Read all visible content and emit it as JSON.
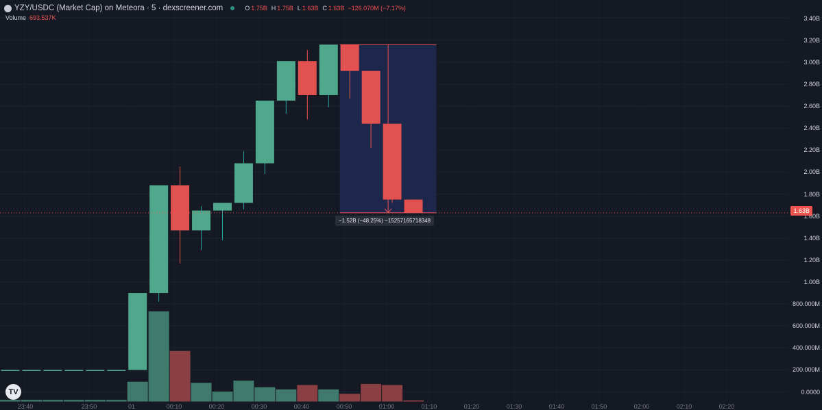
{
  "header": {
    "title": "YZY/USDC (Market Cap) on Meteora · 5 · dexscreener.com",
    "ohlc": [
      {
        "key": "O",
        "value": "1.75B"
      },
      {
        "key": "H",
        "value": "1.75B"
      },
      {
        "key": "L",
        "value": "1.63B"
      },
      {
        "key": "C",
        "value": "1.63B"
      },
      {
        "key": "",
        "value": "−126.070M (−7.17%)"
      }
    ],
    "volume_label": "Volume",
    "volume_value": "693.537K"
  },
  "current_price_label": "1.63B",
  "measure_label": "−1.52B (−48.25%) −15257165718348",
  "colors": {
    "up": "#26a69a",
    "down": "#ef5350",
    "background": "#151924",
    "measure_fill": "#1f2a52"
  },
  "chart_data": {
    "type": "candlestick",
    "y_unit": "market cap (B)",
    "price_ticks": [
      "3.40B",
      "3.20B",
      "3.00B",
      "2.80B",
      "2.60B",
      "2.40B",
      "2.20B",
      "2.00B",
      "1.80B",
      "1.60B",
      "1.40B",
      "1.20B",
      "1.00B",
      "800.000M",
      "600.000M",
      "400.000M",
      "200.000M",
      "0.0000"
    ],
    "price_tick_values": [
      3.4,
      3.2,
      3.0,
      2.8,
      2.6,
      2.4,
      2.2,
      2.0,
      1.8,
      1.6,
      1.4,
      1.2,
      1.0,
      0.8,
      0.6,
      0.4,
      0.2,
      0.0
    ],
    "x_ticks": [
      "23:40",
      "23:50",
      "01",
      "00:10",
      "00:20",
      "00:30",
      "00:40",
      "00:50",
      "01:00",
      "01:10",
      "01:20",
      "01:30",
      "01:40",
      "01:50",
      "02:00",
      "02:10",
      "02:20"
    ],
    "candles": [
      {
        "index": 0,
        "open": 0.2,
        "high": 0.2,
        "low": 0.2,
        "close": 0.2
      },
      {
        "index": 1,
        "open": 0.2,
        "high": 0.2,
        "low": 0.2,
        "close": 0.2
      },
      {
        "index": 2,
        "open": 0.2,
        "high": 0.2,
        "low": 0.2,
        "close": 0.2
      },
      {
        "index": 3,
        "open": 0.2,
        "high": 0.2,
        "low": 0.2,
        "close": 0.2
      },
      {
        "index": 4,
        "open": 0.2,
        "high": 0.2,
        "low": 0.2,
        "close": 0.2
      },
      {
        "index": 5,
        "open": 0.2,
        "high": 0.2,
        "low": 0.2,
        "close": 0.2
      },
      {
        "index": 6,
        "open": 0.2,
        "high": 0.9,
        "low": 0.2,
        "close": 0.9
      },
      {
        "index": 7,
        "open": 0.9,
        "high": 1.88,
        "low": 0.82,
        "close": 1.88
      },
      {
        "index": 8,
        "open": 1.88,
        "high": 2.05,
        "low": 1.17,
        "close": 1.47
      },
      {
        "index": 9,
        "open": 1.47,
        "high": 1.69,
        "low": 1.29,
        "close": 1.65
      },
      {
        "index": 10,
        "open": 1.65,
        "high": 1.72,
        "low": 1.38,
        "close": 1.72
      },
      {
        "index": 11,
        "open": 1.72,
        "high": 2.19,
        "low": 1.66,
        "close": 2.08
      },
      {
        "index": 12,
        "open": 2.08,
        "high": 2.65,
        "low": 1.98,
        "close": 2.65
      },
      {
        "index": 13,
        "open": 2.65,
        "high": 3.01,
        "low": 2.53,
        "close": 3.01
      },
      {
        "index": 14,
        "open": 3.01,
        "high": 3.11,
        "low": 2.48,
        "close": 2.7
      },
      {
        "index": 15,
        "open": 2.7,
        "high": 3.16,
        "low": 2.59,
        "close": 3.16
      },
      {
        "index": 16,
        "open": 3.16,
        "high": 3.16,
        "low": 2.67,
        "close": 2.92
      },
      {
        "index": 17,
        "open": 2.92,
        "high": 2.92,
        "low": 2.22,
        "close": 2.44
      },
      {
        "index": 18,
        "open": 2.44,
        "high": 2.44,
        "low": 1.72,
        "close": 1.75
      },
      {
        "index": 19,
        "open": 1.75,
        "high": 1.75,
        "low": 1.63,
        "close": 1.63
      }
    ],
    "volume": [
      0.015,
      0.015,
      0.015,
      0.015,
      0.015,
      0.015,
      0.18,
      0.82,
      0.46,
      0.17,
      0.09,
      0.19,
      0.13,
      0.11,
      0.15,
      0.11,
      0.07,
      0.16,
      0.15,
      0.01
    ],
    "volume_unit": "same scale as price axis (B)",
    "measure_tool": {
      "from_value": 3.16,
      "to_value": 1.63,
      "from_candle": 16,
      "to_candle": 19
    }
  }
}
